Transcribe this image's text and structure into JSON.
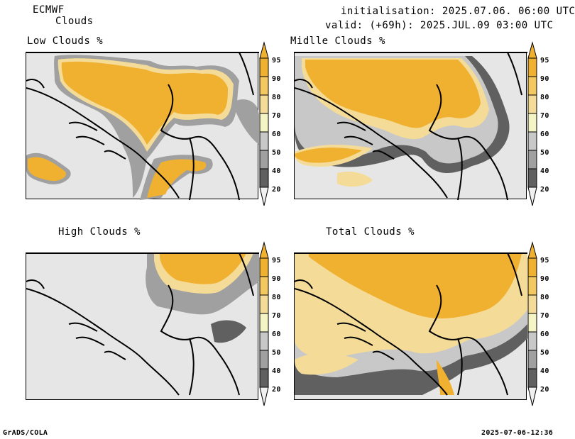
{
  "header": {
    "model": "ECMWF",
    "product": "Clouds",
    "initialisation": "initialisation: 2025.07.06. 06:00 UTC",
    "valid": "valid: (+69h): 2025.JUL.09 03:00 UTC"
  },
  "panels": [
    {
      "id": "low",
      "title": "Low Clouds %"
    },
    {
      "id": "middle",
      "title": "Midlle Clouds %"
    },
    {
      "id": "high",
      "title": "High Clouds %"
    },
    {
      "id": "total",
      "title": "Total Clouds %"
    }
  ],
  "colorbar": {
    "levels": [
      "95",
      "90",
      "80",
      "70",
      "60",
      "50",
      "40",
      "20"
    ],
    "colors": [
      "#f0b030",
      "#f4c860",
      "#f4dc98",
      "#f4f4c4",
      "#e8e8e8",
      "#c8c8c8",
      "#a0a0a0",
      "#606060",
      "#f0f0f0"
    ]
  },
  "footer": {
    "left": "GrADS/COLA",
    "right": "2025-07-06-12:36"
  }
}
